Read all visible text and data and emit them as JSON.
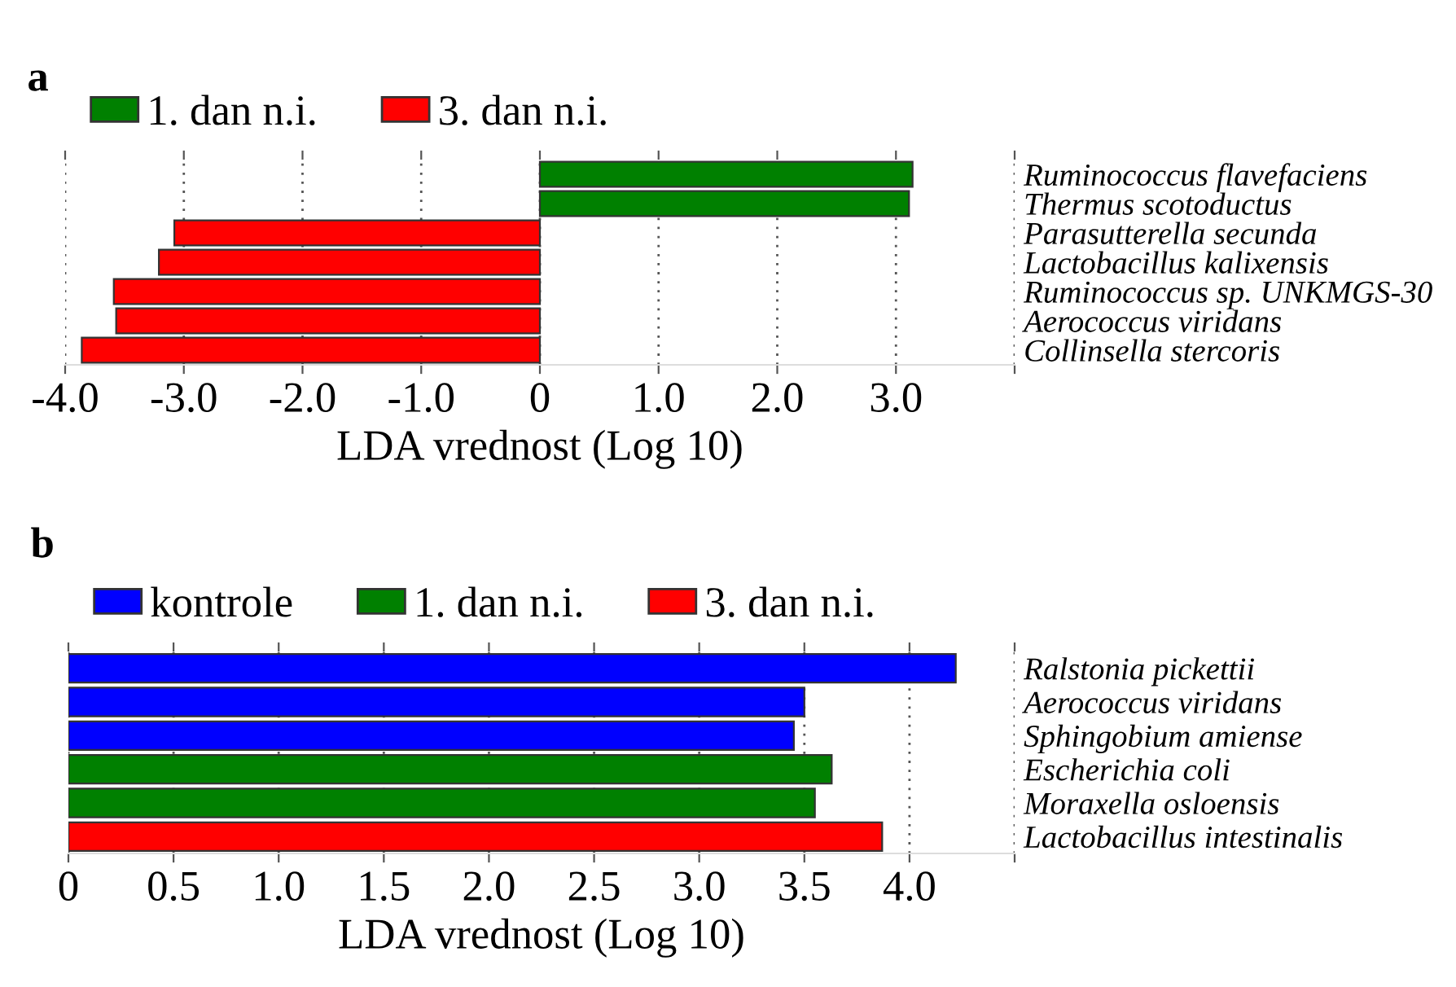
{
  "chart_data": [
    {
      "type": "bar",
      "title": "a",
      "orientation": "horizontal",
      "xlabel": "LDA vrednost (Log 10)",
      "categories": [
        "Ruminococcus flavefaciens",
        "Thermus scotoductus",
        "Parasutterella secunda",
        "Lactobacillus kalixensis",
        "Ruminococcus sp. UNKMGS-30",
        "Aerococcus viridans",
        "Collinsella stercoris"
      ],
      "series": [
        {
          "name": "1. dan n.i.",
          "color": "#008000",
          "values": [
            3.14,
            3.11,
            null,
            null,
            null,
            null,
            null
          ]
        },
        {
          "name": "3. dan n.i.",
          "color": "#ff0000",
          "values": [
            null,
            null,
            -3.08,
            -3.21,
            -3.59,
            -3.57,
            -3.86
          ]
        }
      ],
      "xlim": [
        -4.0,
        4.0
      ],
      "xticks": [
        {
          "value": -4,
          "label": "-4.0"
        },
        {
          "value": -3,
          "label": "-3.0"
        },
        {
          "value": -2,
          "label": "-2.0"
        },
        {
          "value": -1,
          "label": "-1.0"
        },
        {
          "value": 0,
          "label": "0"
        },
        {
          "value": 1,
          "label": "1.0"
        },
        {
          "value": 2,
          "label": "2.0"
        },
        {
          "value": 3,
          "label": "3.0"
        },
        {
          "value": 4,
          "label": null
        }
      ],
      "grid": "x",
      "legend": "top left"
    },
    {
      "type": "bar",
      "title": "b",
      "orientation": "horizontal",
      "xlabel": "LDA vrednost (Log 10)",
      "categories": [
        "Ralstonia pickettii",
        "Aerococcus viridans",
        "Sphingobium amiense",
        "Escherichia coli",
        "Moraxella osloensis",
        "Lactobacillus intestinalis"
      ],
      "series": [
        {
          "name": "kontrole",
          "color": "#0000ff",
          "values": [
            4.22,
            3.5,
            3.45,
            null,
            null,
            null
          ]
        },
        {
          "name": "1. dan n.i.",
          "color": "#008000",
          "values": [
            null,
            null,
            null,
            3.63,
            3.55,
            null
          ]
        },
        {
          "name": "3. dan n.i.",
          "color": "#ff0000",
          "values": [
            null,
            null,
            null,
            null,
            null,
            3.87
          ]
        }
      ],
      "xlim": [
        0,
        4.5
      ],
      "xticks": [
        0,
        0.5,
        {
          "value": 1,
          "label": "1.0"
        },
        1.5,
        {
          "value": 2,
          "label": "2.0"
        },
        2.5,
        {
          "value": 3,
          "label": "3.0"
        },
        3.5,
        {
          "value": 4,
          "label": "4.0"
        },
        {
          "value": 4.5,
          "label": null
        }
      ],
      "grid": "x",
      "legend": "top left"
    }
  ]
}
